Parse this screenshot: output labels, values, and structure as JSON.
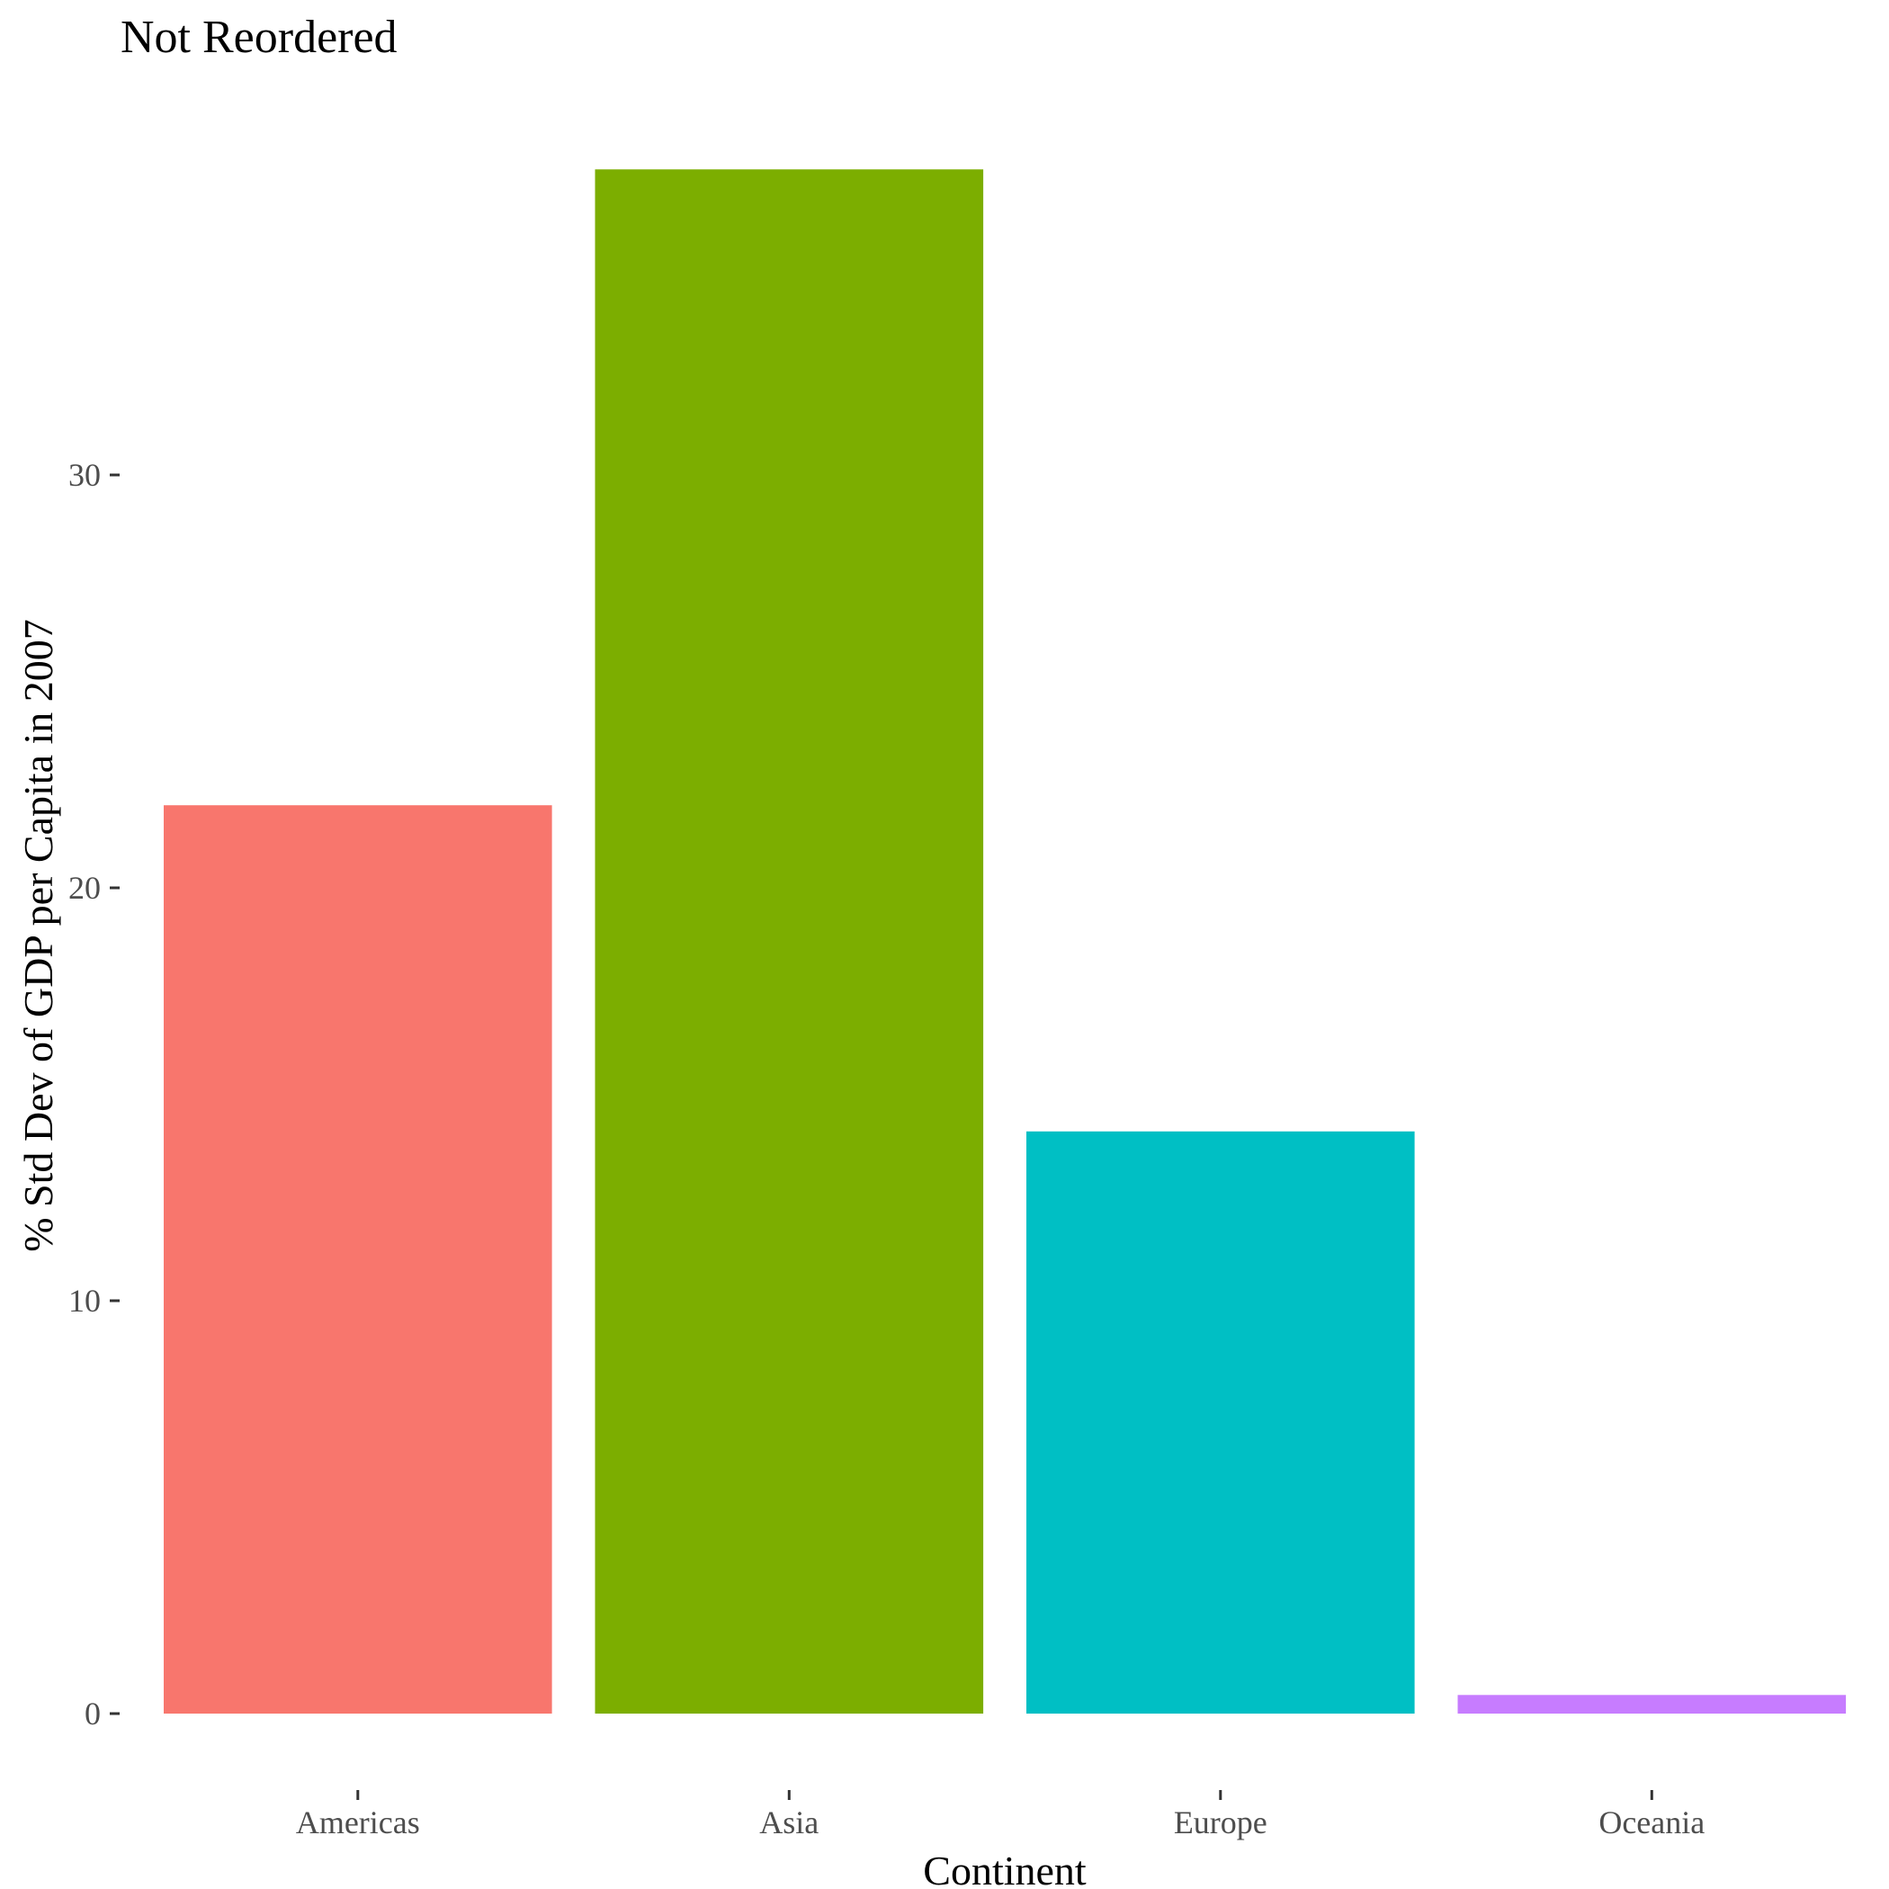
{
  "chart_data": {
    "type": "bar",
    "title": "Not Reordered",
    "xlabel": "Continent",
    "ylabel": "% Std Dev of GDP per Capita in 2007",
    "categories": [
      "Americas",
      "Asia",
      "Europe",
      "Oceania"
    ],
    "values": [
      22.0,
      37.4,
      14.1,
      0.45
    ],
    "colors": [
      "#F8766D",
      "#7CAE00",
      "#00BFC4",
      "#C77CFF"
    ],
    "ylim": [
      0,
      39.5
    ],
    "yticks": [
      0,
      10,
      20,
      30
    ],
    "grid": false,
    "legend": "none"
  }
}
